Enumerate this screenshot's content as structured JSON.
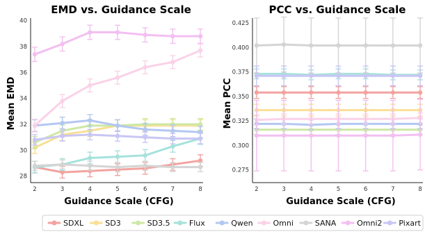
{
  "colors": {
    "SDXL": "#f2a3a0",
    "SD3": "#f9df96",
    "SD3.5": "#cde8a4",
    "Flux": "#a6e2dc",
    "Qwen": "#b3c7f2",
    "Omni": "#fad2e8",
    "SANA": "#d4d4d4",
    "Omni2": "#f3bff1",
    "Pixart": "#c9c6f4"
  },
  "legend": [
    "SDXL",
    "SD3",
    "SD3.5",
    "Flux",
    "Qwen",
    "Omni",
    "SANA",
    "Omni2",
    "Pixart"
  ],
  "chart_data": [
    {
      "type": "line",
      "title": "EMD vs. Guidance Scale",
      "xlabel": "Guidance Scale (CFG)",
      "ylabel": "Mean EMD",
      "x": [
        2,
        3,
        4,
        5,
        6,
        7,
        8
      ],
      "xlim": [
        1.85,
        8.1
      ],
      "ylim": [
        27.5,
        40.2
      ],
      "yticks": [
        28,
        30,
        32,
        34,
        36,
        38,
        40
      ],
      "series": [
        {
          "name": "SDXL",
          "values": [
            28.7,
            28.3,
            28.4,
            28.5,
            28.6,
            28.9,
            29.2
          ],
          "err": 0.45
        },
        {
          "name": "SD3",
          "values": [
            30.2,
            31.2,
            31.5,
            31.9,
            31.9,
            31.9,
            31.9
          ],
          "err": 0.45
        },
        {
          "name": "SD3.5",
          "values": [
            30.6,
            31.5,
            31.9,
            31.9,
            32.0,
            32.0,
            32.0
          ],
          "err": 0.45
        },
        {
          "name": "Flux",
          "values": [
            28.7,
            28.9,
            29.4,
            29.5,
            29.6,
            30.3,
            30.9
          ],
          "err": 0.45
        },
        {
          "name": "Qwen",
          "values": [
            31.9,
            32.1,
            32.3,
            31.9,
            31.6,
            31.5,
            31.4
          ],
          "err": 0.45
        },
        {
          "name": "Omni",
          "values": [
            31.9,
            33.8,
            35.0,
            35.6,
            36.4,
            36.8,
            37.7
          ],
          "err": 0.5
        },
        {
          "name": "SANA",
          "values": [
            28.8,
            28.9,
            28.8,
            28.7,
            28.8,
            28.7,
            28.7
          ],
          "err": 0.35
        },
        {
          "name": "Omni2",
          "values": [
            37.4,
            38.2,
            39.1,
            39.1,
            38.9,
            38.8,
            38.8
          ],
          "err": 0.55
        },
        {
          "name": "Pixart",
          "values": [
            30.8,
            31.1,
            31.2,
            31.1,
            31.0,
            30.9,
            30.9
          ],
          "err": 0.4
        }
      ]
    },
    {
      "type": "line",
      "title": "PCC vs. Guidance Scale",
      "xlabel": "Guidance Scale (CFG)",
      "ylabel": "Mean PCC",
      "x": [
        2,
        3,
        4,
        5,
        6,
        7,
        8
      ],
      "xlim": [
        1.85,
        8.1
      ],
      "ylim": [
        0.262,
        0.43
      ],
      "yticks": [
        0.275,
        0.3,
        0.325,
        0.35,
        0.375,
        0.4,
        0.425
      ],
      "series": [
        {
          "name": "SDXL",
          "values": [
            0.354,
            0.354,
            0.354,
            0.354,
            0.354,
            0.354,
            0.354
          ],
          "err": 0.006
        },
        {
          "name": "SD3",
          "values": [
            0.336,
            0.336,
            0.336,
            0.336,
            0.336,
            0.336,
            0.336
          ],
          "err": 0.006
        },
        {
          "name": "SD3.5",
          "values": [
            0.316,
            0.316,
            0.316,
            0.316,
            0.316,
            0.316,
            0.316
          ],
          "err": 0.005
        },
        {
          "name": "Flux",
          "values": [
            0.373,
            0.373,
            0.372,
            0.373,
            0.373,
            0.372,
            0.372
          ],
          "err": 0.005
        },
        {
          "name": "Qwen",
          "values": [
            0.322,
            0.322,
            0.321,
            0.322,
            0.322,
            0.322,
            0.322
          ],
          "err": 0.005
        },
        {
          "name": "Omni",
          "values": [
            0.326,
            0.327,
            0.327,
            0.327,
            0.327,
            0.327,
            0.328
          ],
          "err": 0.005
        },
        {
          "name": "SANA",
          "values": [
            0.402,
            0.403,
            0.402,
            0.402,
            0.402,
            0.402,
            0.402
          ],
          "err": 0.028
        },
        {
          "name": "Omni2",
          "values": [
            0.31,
            0.31,
            0.31,
            0.31,
            0.31,
            0.31,
            0.311
          ],
          "err": 0.036
        },
        {
          "name": "Pixart",
          "values": [
            0.371,
            0.371,
            0.371,
            0.371,
            0.371,
            0.371,
            0.371
          ],
          "err": 0.01
        }
      ]
    }
  ]
}
